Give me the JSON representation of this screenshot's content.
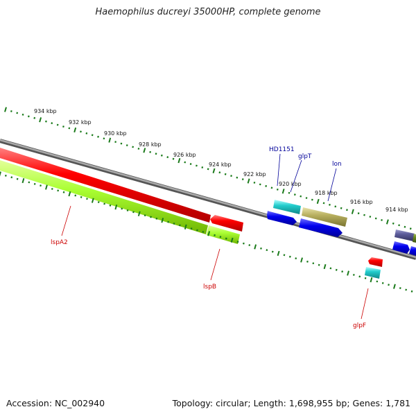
{
  "title": "Haemophilus ducreyi 35000HP, complete genome",
  "accession_label": "Accession: NC_002940",
  "topology_label": "Topology: circular; Length: 1,698,955 bp; Genes: 1,781",
  "scale_ticks": [
    "934 kbp",
    "932 kbp",
    "930 kbp",
    "928 kbp",
    "926 kbp",
    "924 kbp",
    "922 kbp",
    "920 kbp",
    "918 kbp",
    "916 kbp",
    "914 kbp"
  ],
  "genes": [
    {
      "name": "lspA2",
      "color": "#cc0000",
      "kind": "minus-strand"
    },
    {
      "name": "lspB",
      "color": "#cc0000",
      "kind": "minus-strand"
    },
    {
      "name": "HD1151",
      "color": "#000099",
      "kind": "plus-strand"
    },
    {
      "name": "glpT",
      "color": "#000099",
      "kind": "plus-strand"
    },
    {
      "name": "lon",
      "color": "#000099",
      "kind": "plus-strand"
    },
    {
      "name": "glpF",
      "color": "#cc0000",
      "kind": "minus-strand"
    }
  ],
  "colors": {
    "backbone": "#888888",
    "tick": "#1a7a1a",
    "red_feature": "#ff0000",
    "green_feature": "#aaff33",
    "blue_feature": "#0000ee",
    "cyan_feature": "#22cccc",
    "olive_feature": "#b8b060",
    "slate_feature": "#5a5a99"
  }
}
